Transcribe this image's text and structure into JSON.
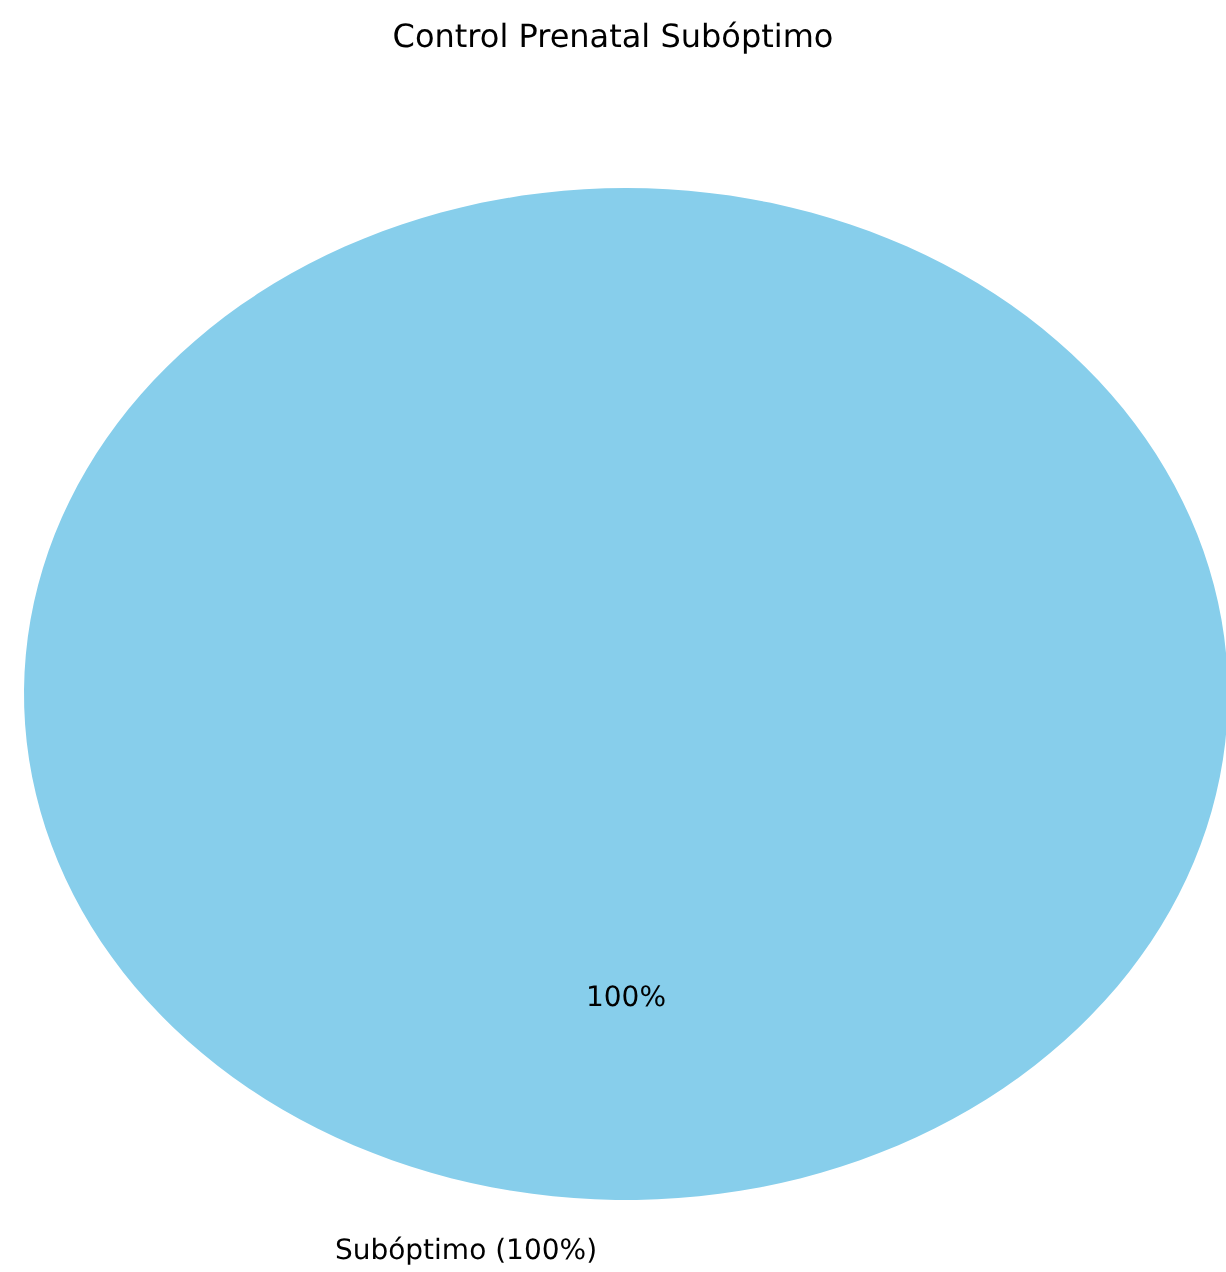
{
  "chart_data": {
    "type": "pie",
    "title": "Control Prenatal Subóptimo",
    "categories": [
      "Subóptimo (100%)"
    ],
    "values": [
      100
    ],
    "value_labels": [
      "100%"
    ],
    "data_labels": true,
    "colors": [
      "#87ceeb"
    ]
  }
}
